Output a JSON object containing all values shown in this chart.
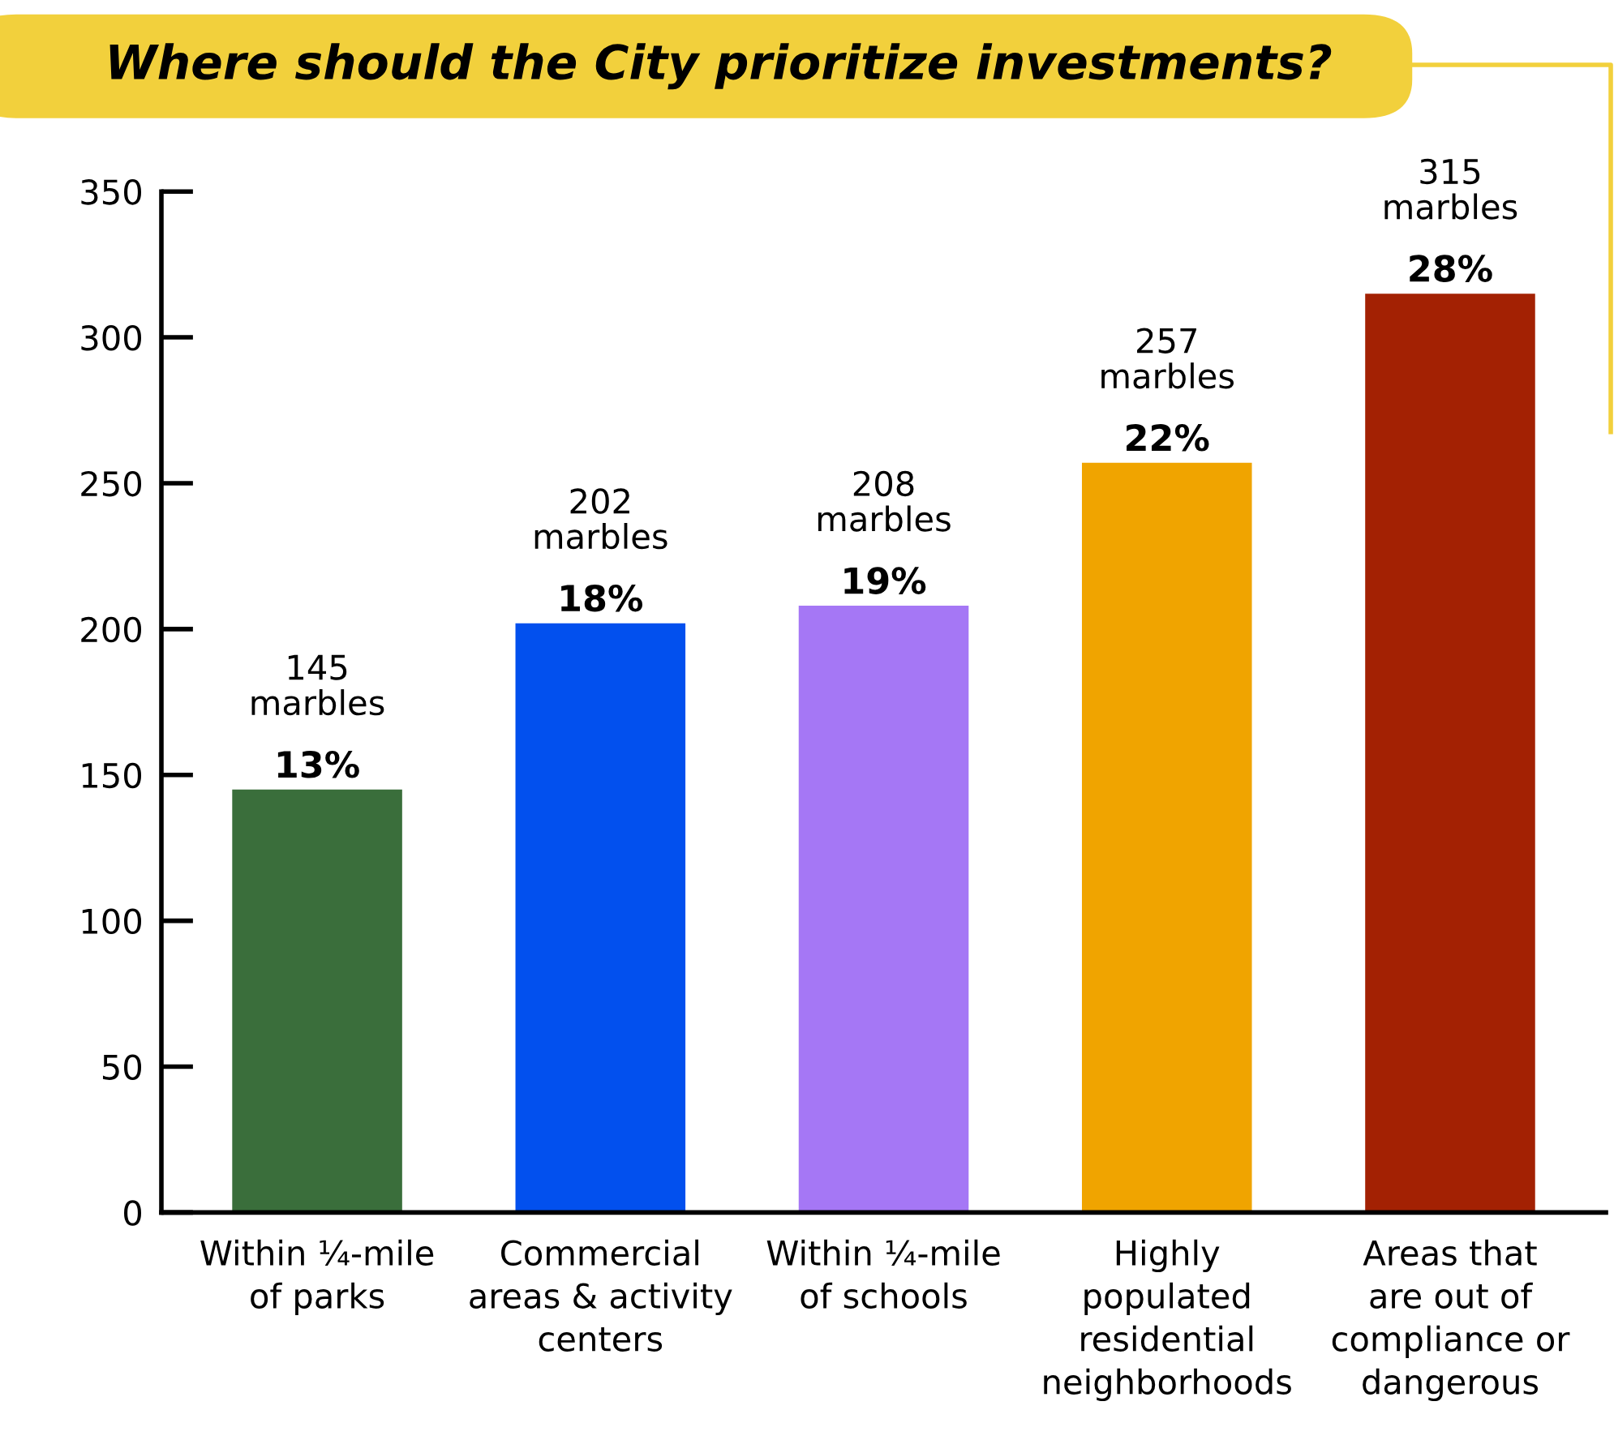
{
  "chart_data": {
    "type": "bar",
    "title": "Where should the City prioritize investments?",
    "categories": [
      "Within ¼-mile\nof parks",
      "Commercial\nareas & activity\ncenters",
      "Within ¼-mile\nof schools",
      "Highly\npopulated\nresidential\nneighborhoods",
      "Areas that\nare out of\ncompliance or\ndangerous"
    ],
    "values": [
      145,
      202,
      208,
      257,
      315
    ],
    "colors": [
      "#3a6e3b",
      "#0250ee",
      "#a577f5",
      "#f0a400",
      "#a32103"
    ],
    "value_labels": [
      "145\nmarbles",
      "202\nmarbles",
      "208\nmarbles",
      "257\nmarbles",
      "315\nmarbles"
    ],
    "annotations": [
      {
        "text": "13%",
        "x": "Within ¼-mile\nof parks",
        "y": 145
      },
      {
        "text": "18%",
        "x": "Commercial\nareas & activity\ncenters",
        "y": 202
      },
      {
        "text": "19%",
        "x": "Within ¼-mile\nof schools",
        "y": 208
      },
      {
        "text": "22%",
        "x": "Highly\npopulated\nresidential\nneighborhoods",
        "y": 257
      },
      {
        "text": "28%",
        "x": "Areas that\nare out of\ncompliance or\ndangerous",
        "y": 315
      }
    ],
    "ylim": [
      0,
      350
    ],
    "yticks": [
      0,
      50,
      100,
      150,
      200,
      250,
      300,
      350
    ],
    "grid": false
  }
}
